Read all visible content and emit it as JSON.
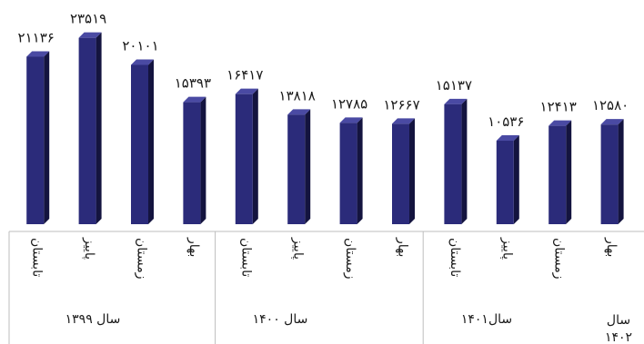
{
  "chart_data": {
    "type": "bar",
    "title": "",
    "xlabel": "",
    "ylabel": "",
    "ylim": [
      0,
      26000
    ],
    "grid": false,
    "legend": "none",
    "bar_color": "#2b2b7a",
    "bar_side_color": "#14143f",
    "bar_top_color": "#4a4aa3",
    "categories": [
      "تابستان",
      "پاییز",
      "زمستان",
      "بهار",
      "تابستان",
      "پاییز",
      "زمستان",
      "بهار",
      "تابستان",
      "پاییز",
      "زمستان",
      "بهار"
    ],
    "values": [
      21136,
      23519,
      20101,
      15393,
      16417,
      13818,
      12785,
      12667,
      15137,
      10536,
      12413,
      12580
    ],
    "value_labels": [
      "۲۱۱۳۶",
      "۲۳۵۱۹",
      "۲۰۱۰۱",
      "۱۵۳۹۳",
      "۱۶۴۱۷",
      "۱۳۸۱۸",
      "۱۲۷۸۵",
      "۱۲۶۶۷",
      "۱۵۱۳۷",
      "۱۰۵۳۶",
      "۱۲۴۱۳",
      "۱۲۵۸۰"
    ],
    "groups": [
      {
        "label": "سال ۱۳۹۹",
        "start": 0,
        "end": 3
      },
      {
        "label": "سال ۱۴۰۰",
        "start": 4,
        "end": 7
      },
      {
        "label": "سال۱۴۰۱",
        "start": 8,
        "end": 10
      },
      {
        "label": "سال ۱۴۰۲",
        "start": 11,
        "end": 11
      }
    ]
  }
}
